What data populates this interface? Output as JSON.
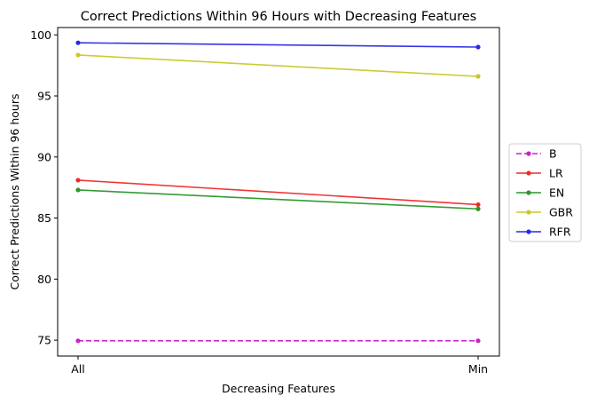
{
  "chart_data": {
    "type": "line",
    "title": "Correct Predictions Within 96 Hours with Decreasing Features",
    "xlabel": "Decreasing Features",
    "ylabel": "Correct Predictions Within 96 hours",
    "categories": [
      "All",
      "Min"
    ],
    "ylim": [
      73.7,
      100.6
    ],
    "yticks": [
      75,
      80,
      85,
      90,
      95,
      100
    ],
    "grid": false,
    "legend_position": "right",
    "series": [
      {
        "name": "B",
        "values": [
          74.95,
          74.95
        ],
        "color": "#cc1fcc",
        "dashed": true
      },
      {
        "name": "LR",
        "values": [
          88.1,
          86.1
        ],
        "color": "#ee2a2a",
        "dashed": false
      },
      {
        "name": "EN",
        "values": [
          87.3,
          85.75
        ],
        "color": "#2a962a",
        "dashed": false
      },
      {
        "name": "GBR",
        "values": [
          98.35,
          96.6
        ],
        "color": "#c8c82a",
        "dashed": false
      },
      {
        "name": "RFR",
        "values": [
          99.35,
          99.0
        ],
        "color": "#2a2ae6",
        "dashed": false
      }
    ]
  }
}
